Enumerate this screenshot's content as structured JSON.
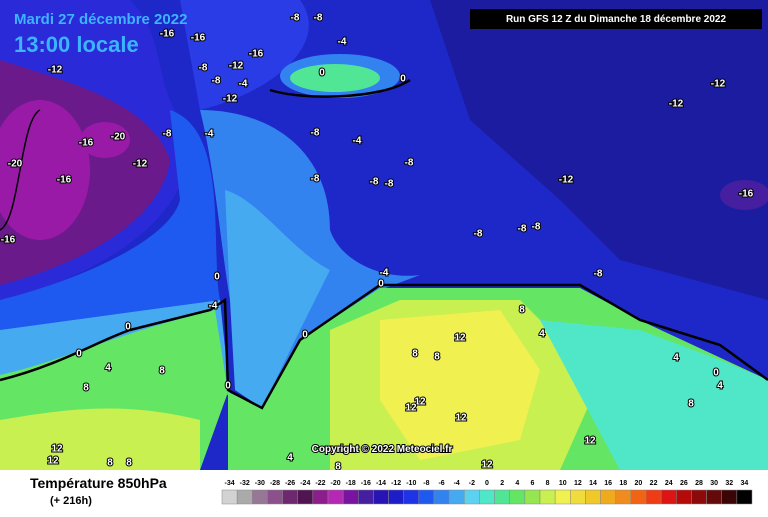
{
  "header": {
    "date": "Mardi 27 décembre 2022",
    "time": "13:00 locale",
    "run": "Run GFS 12 Z du Dimanche 18 décembre 2022"
  },
  "map": {
    "contour_labels": [
      -16,
      -16,
      -8,
      -8,
      -4,
      0,
      0,
      -12,
      -16,
      -8,
      -12,
      -8,
      -12,
      -4,
      -12,
      -12,
      -20,
      -16,
      -12,
      -8,
      -4,
      -20,
      -16,
      -8,
      -4,
      -8,
      -8,
      -8,
      -8,
      -12,
      -16,
      -16,
      -8,
      -8,
      -8,
      -4,
      0,
      0,
      -8,
      -4,
      0,
      0,
      0,
      4,
      8,
      8,
      12,
      8,
      4,
      12,
      12,
      8,
      8,
      12,
      12,
      12,
      4,
      8,
      0,
      0,
      4,
      8,
      12,
      12,
      8,
      8,
      4
    ],
    "copyright": "Copyright © 2022 Meteociel.fr"
  },
  "legend": {
    "title": "Température 850hPa",
    "subtitle": "(+ 216h)",
    "ticks": [
      -34,
      -32,
      -30,
      -28,
      -26,
      -24,
      -22,
      -20,
      -18,
      -16,
      -14,
      -12,
      -10,
      -8,
      -6,
      -4,
      -2,
      0,
      2,
      4,
      6,
      8,
      10,
      12,
      14,
      16,
      18,
      20,
      22,
      24,
      26,
      28,
      30,
      32,
      34
    ],
    "colors": [
      "#d2d2d2",
      "#aaaaaa",
      "#967896",
      "#8c508c",
      "#6e286e",
      "#501450",
      "#8c1e8c",
      "#b428b4",
      "#7814a0",
      "#461ea0",
      "#2814b4",
      "#1e1ec8",
      "#1e32e6",
      "#1e5af0",
      "#3282f0",
      "#46aaf0",
      "#5ad2f0",
      "#50e6c8",
      "#50e696",
      "#64e664",
      "#96e650",
      "#c8f050",
      "#f0f050",
      "#f0dc3c",
      "#f0c828",
      "#f0aa1e",
      "#f08c1e",
      "#f06414",
      "#f03c14",
      "#dc1414",
      "#b40a0a",
      "#8c0a0a",
      "#640a0a",
      "#3c0505",
      "#000000"
    ]
  }
}
